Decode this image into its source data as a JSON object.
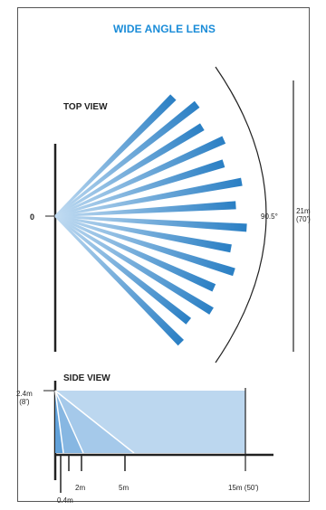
{
  "title": "WIDE ANGLE LENS",
  "top_view": {
    "label": "TOP VIEW",
    "origin_label": "0",
    "angle_label": "90.5°",
    "range_label_line1": "21m",
    "range_label_line2": "(70')",
    "beam_count": 14
  },
  "side_view": {
    "label": "SIDE VIEW",
    "height_label_line1": "2.4m",
    "height_label_line2": "(8')",
    "distance_labels": [
      "0.4m",
      "2m",
      "5m",
      "15m (50')"
    ]
  },
  "colors": {
    "accent": "#1a8cd8",
    "beam_dark": "#2a7fc4",
    "beam_light": "#c2dcf2",
    "side_fill": "#bcd7ef"
  }
}
